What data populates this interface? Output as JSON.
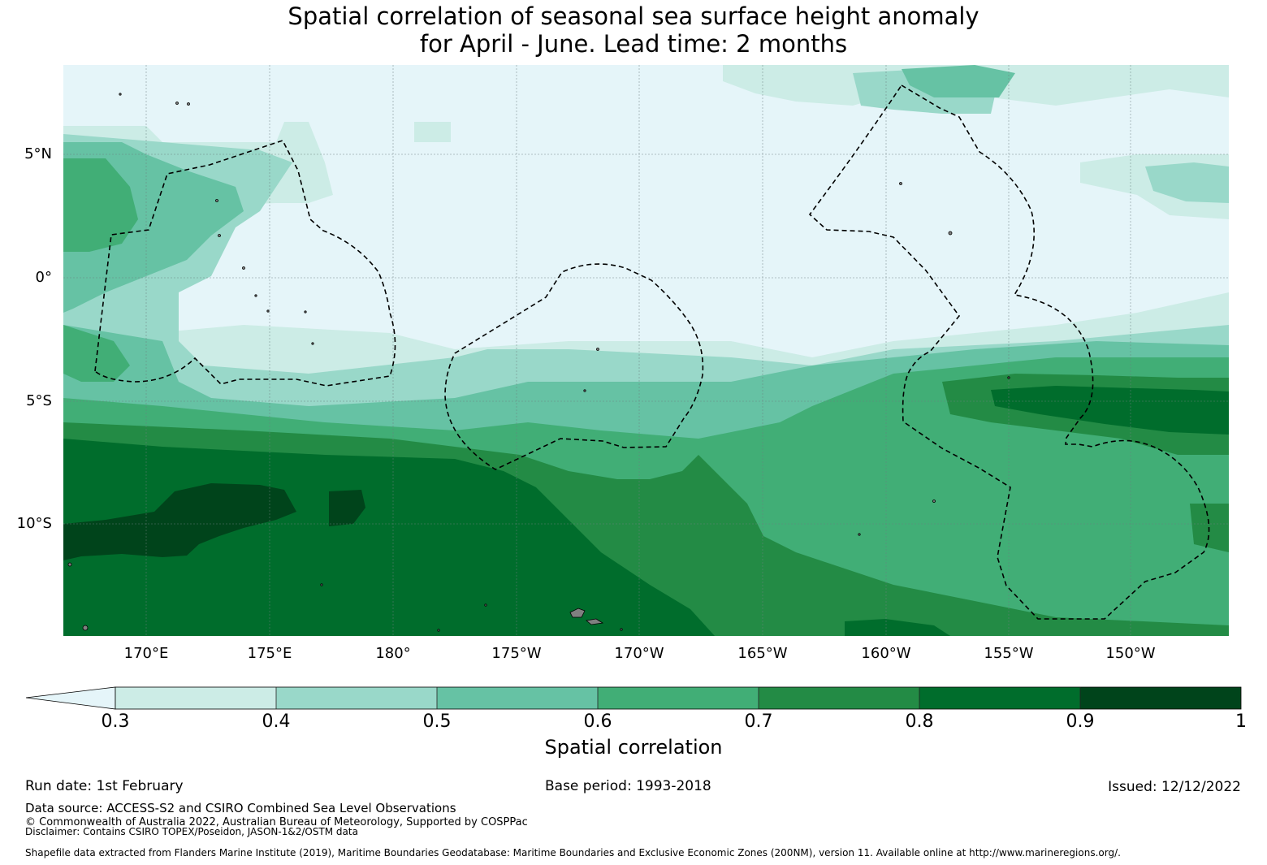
{
  "title": {
    "line1": "Spatial correlation of seasonal sea surface height anomaly",
    "line2": "for April - June. Lead time: 2 months"
  },
  "map": {
    "lat_labels": [
      "5°N",
      "0°",
      "5°S",
      "10°S"
    ],
    "lon_labels": [
      "170°E",
      "175°E",
      "180°",
      "175°W",
      "170°W",
      "165°W",
      "160°W",
      "155°W",
      "150°W"
    ],
    "land_color": "#808080",
    "boundary_style": "dashed"
  },
  "colorbar": {
    "label": "Spatial correlation",
    "ticks": [
      "0.3",
      "0.4",
      "0.5",
      "0.6",
      "0.7",
      "0.8",
      "0.9",
      "1"
    ],
    "bins": [
      {
        "min": 0.0,
        "max": 0.3,
        "color": "#e5f5f9"
      },
      {
        "min": 0.3,
        "max": 0.4,
        "color": "#ccece6"
      },
      {
        "min": 0.4,
        "max": 0.5,
        "color": "#99d8c9"
      },
      {
        "min": 0.5,
        "max": 0.6,
        "color": "#66c2a4"
      },
      {
        "min": 0.6,
        "max": 0.7,
        "color": "#41ae76"
      },
      {
        "min": 0.7,
        "max": 0.8,
        "color": "#238b45"
      },
      {
        "min": 0.8,
        "max": 0.9,
        "color": "#006d2c"
      },
      {
        "min": 0.9,
        "max": 1.0,
        "color": "#00441b"
      }
    ]
  },
  "footer": {
    "run_date": "Run date: 1st February",
    "base_period": "Base period: 1993-2018",
    "issued": "Issued: 12/12/2022",
    "data_source": "Data source: ACCESS-S2 and CSIRO Combined Sea Level Observations",
    "copyright": "© Commonwealth of Australia 2022, Australian Bureau of Meteorology, Supported by COSPPac",
    "disclaimer": "Disclaimer: Contains CSIRO TOPEX/Poseidon, JASON-1&2/OSTM data",
    "shapefile": "Shapefile data extracted from Flanders Marine Institute (2019), Maritime Boundaries Geodatabase: Maritime Boundaries and Exclusive Economic Zones (200NM), version 11. Available online at http://www.marineregions.org/."
  }
}
